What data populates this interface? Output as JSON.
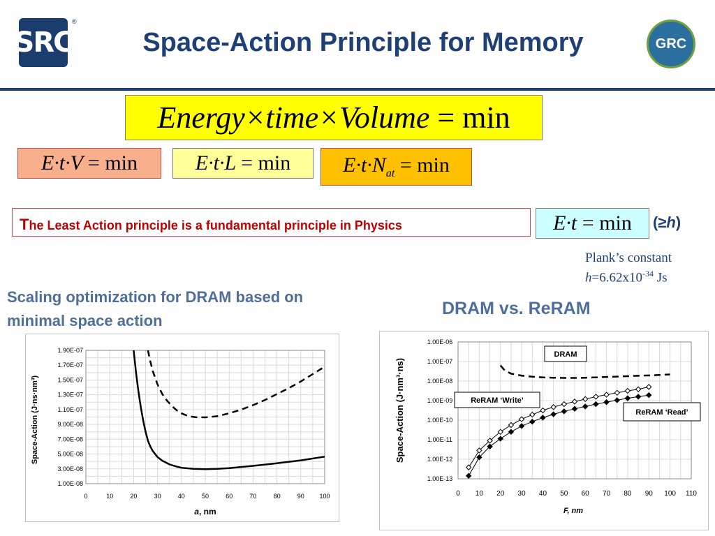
{
  "header": {
    "title": "Space-Action Principle for Memory",
    "logo_left": "SRC",
    "logo_left_mark": "®",
    "logo_right": "GRC"
  },
  "formulas": {
    "main": "Energy×time×Volume = min",
    "f1": "E·t·V = min",
    "f2": "E·t·L = min",
    "f3": "E·t·N_at = min",
    "f4": "E·t = min"
  },
  "least_action": {
    "first_letter": "T",
    "rest": "he Least Action principle is a fundamental principle in Physics"
  },
  "ge_h": "(≥h)",
  "plank": {
    "line1": "Plank’s constant",
    "h": "h",
    "value": "=6.62x10",
    "exp": "-34",
    "unit": " Js"
  },
  "captions": {
    "left": "Scaling optimization for DRAM based on minimal space action",
    "right": "DRAM vs. ReRAM"
  },
  "colors": {
    "title": "#1f3f77",
    "caption": "#4f6f9a",
    "least_action_text": "#c00000"
  },
  "chart_data": [
    {
      "type": "line",
      "xlabel": "a, nm",
      "ylabel": "Space-Action (J·ns·nm³)",
      "xlim": [
        0,
        100
      ],
      "ylim": [
        1e-08,
        1.9e-07
      ],
      "xticks": [
        "0",
        "10",
        "20",
        "30",
        "40",
        "50",
        "60",
        "70",
        "80",
        "90",
        "100"
      ],
      "yticks": [
        "1.00E-08",
        "3.00E-08",
        "5.00E-08",
        "7.00E-08",
        "9.00E-08",
        "1.10E-07",
        "1.30E-07",
        "1.50E-07",
        "1.70E-07",
        "1.90E-07"
      ],
      "grid": true,
      "series": [
        {
          "style": "dashed",
          "x": [
            26,
            27,
            28,
            30,
            32,
            34,
            36,
            38,
            40,
            43,
            46,
            50,
            55,
            60,
            65,
            70,
            75,
            80,
            85,
            90,
            95,
            100
          ],
          "y": [
            1.9e-07,
            1.75e-07,
            1.62e-07,
            1.44e-07,
            1.31e-07,
            1.22e-07,
            1.15e-07,
            1.09e-07,
            1.05e-07,
            1.01e-07,
            9.97e-08,
            9.95e-08,
            1.01e-07,
            1.05e-07,
            1.1e-07,
            1.16e-07,
            1.23e-07,
            1.31e-07,
            1.39e-07,
            1.48e-07,
            1.58e-07,
            1.68e-07
          ]
        },
        {
          "style": "solid",
          "x": [
            20,
            21,
            22,
            23,
            24,
            25,
            26,
            27,
            28,
            30,
            32,
            35,
            38,
            40,
            45,
            50,
            55,
            60,
            70,
            80,
            90,
            100
          ],
          "y": [
            1.9e-07,
            1.6e-07,
            1.35e-07,
            1.13e-07,
            9.5e-08,
            8e-08,
            6.8e-08,
            6e-08,
            5.4e-08,
            4.6e-08,
            4.1e-08,
            3.6e-08,
            3.3e-08,
            3.15e-08,
            3e-08,
            2.95e-08,
            3e-08,
            3.1e-08,
            3.4e-08,
            3.75e-08,
            4.15e-08,
            4.65e-08
          ]
        }
      ]
    },
    {
      "type": "line",
      "scale": "log",
      "xlabel": "F, nm",
      "ylabel": "Space-Action (J·nm³·ns)",
      "xlim": [
        0,
        110
      ],
      "ylim_exp": [
        -13,
        -6
      ],
      "xticks": [
        "0",
        "10",
        "20",
        "30",
        "40",
        "50",
        "60",
        "70",
        "80",
        "90",
        "100",
        "110"
      ],
      "yticks": [
        "1.00E-13",
        "1.00E-12",
        "1.00E-11",
        "1.00E-10",
        "1.00E-09",
        "1.00E-08",
        "1.00E-07",
        "1.00E-06"
      ],
      "grid": true,
      "series": [
        {
          "name": "DRAM",
          "style": "dashed",
          "x": [
            20,
            22,
            25,
            30,
            35,
            40,
            45,
            50,
            55,
            60,
            65,
            70,
            75,
            80,
            85,
            90,
            95,
            100
          ],
          "y_exp": [
            -7.2,
            -7.45,
            -7.62,
            -7.72,
            -7.78,
            -7.81,
            -7.83,
            -7.84,
            -7.84,
            -7.83,
            -7.81,
            -7.79,
            -7.77,
            -7.75,
            -7.73,
            -7.71,
            -7.69,
            -7.66
          ]
        },
        {
          "name": "ReRAM ‘Write’",
          "style": "open-diamond",
          "x": [
            5,
            10,
            15,
            20,
            25,
            30,
            35,
            40,
            45,
            50,
            55,
            60,
            65,
            70,
            75,
            80,
            85,
            90
          ],
          "y_exp": [
            -12.42,
            -11.55,
            -11.05,
            -10.6,
            -10.25,
            -9.95,
            -9.72,
            -9.5,
            -9.33,
            -9.18,
            -9.05,
            -8.92,
            -8.8,
            -8.7,
            -8.6,
            -8.5,
            -8.42,
            -8.3
          ]
        },
        {
          "name": "ReRAM ‘Read’",
          "style": "filled-diamond",
          "x": [
            5,
            10,
            15,
            20,
            25,
            30,
            35,
            40,
            45,
            50,
            55,
            60,
            65,
            70,
            75,
            80,
            85,
            90
          ],
          "y_exp": [
            -12.85,
            -11.9,
            -11.35,
            -10.95,
            -10.6,
            -10.3,
            -10.08,
            -9.87,
            -9.7,
            -9.55,
            -9.42,
            -9.3,
            -9.18,
            -9.08,
            -8.98,
            -8.88,
            -8.8,
            -8.72
          ]
        }
      ]
    }
  ]
}
